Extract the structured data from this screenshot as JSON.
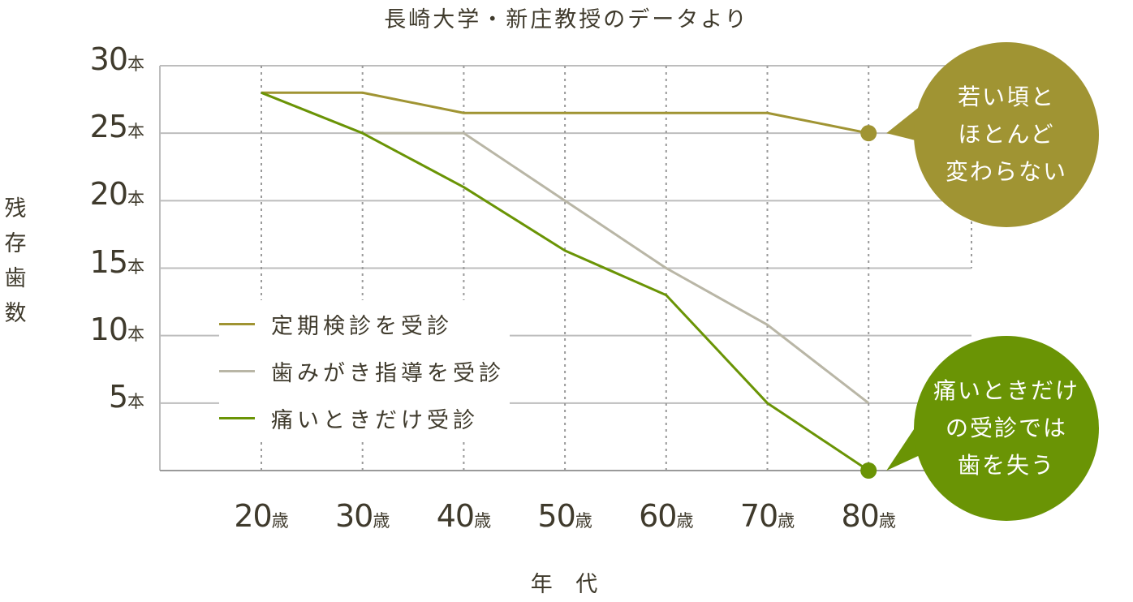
{
  "chart_data": {
    "type": "line",
    "title": "長崎大学・新庄教授のデータより",
    "ylabel": "残存歯数",
    "xlabel": "年 代",
    "ylim": [
      0,
      30
    ],
    "y_ticks": [
      {
        "value": 30,
        "num": "30",
        "unit": "本"
      },
      {
        "value": 25,
        "num": "25",
        "unit": "本"
      },
      {
        "value": 20,
        "num": "20",
        "unit": "本"
      },
      {
        "value": 15,
        "num": "15",
        "unit": "本"
      },
      {
        "value": 10,
        "num": "10",
        "unit": "本"
      },
      {
        "value": 5,
        "num": "5",
        "unit": "本"
      }
    ],
    "categories": [
      {
        "num": "20",
        "unit": "歳"
      },
      {
        "num": "30",
        "unit": "歳"
      },
      {
        "num": "40",
        "unit": "歳"
      },
      {
        "num": "50",
        "unit": "歳"
      },
      {
        "num": "60",
        "unit": "歳"
      },
      {
        "num": "70",
        "unit": "歳"
      },
      {
        "num": "80",
        "unit": "歳"
      }
    ],
    "series": [
      {
        "name": "定期検診を受診",
        "color": "#a09433",
        "values": [
          28,
          28,
          26.5,
          26.5,
          26.5,
          26.5,
          25
        ]
      },
      {
        "name": "歯みがき指導を受診",
        "color": "#b9b6a6",
        "values": [
          28,
          25,
          25,
          20,
          15,
          10.8,
          5
        ]
      },
      {
        "name": "痛いときだけ受診",
        "color": "#6a9405",
        "values": [
          28,
          25,
          21,
          16.3,
          13,
          5,
          0
        ]
      }
    ],
    "grid": true,
    "legend_position": "bottom-left",
    "annotations": [
      {
        "lines": [
          "若い頃と",
          "ほとんど",
          "変わらない"
        ],
        "color": "#a09433",
        "series": 0
      },
      {
        "lines": [
          "痛いときだけ",
          "の受診では",
          "歯を失う"
        ],
        "color": "#6a9405",
        "series": 2
      }
    ]
  }
}
